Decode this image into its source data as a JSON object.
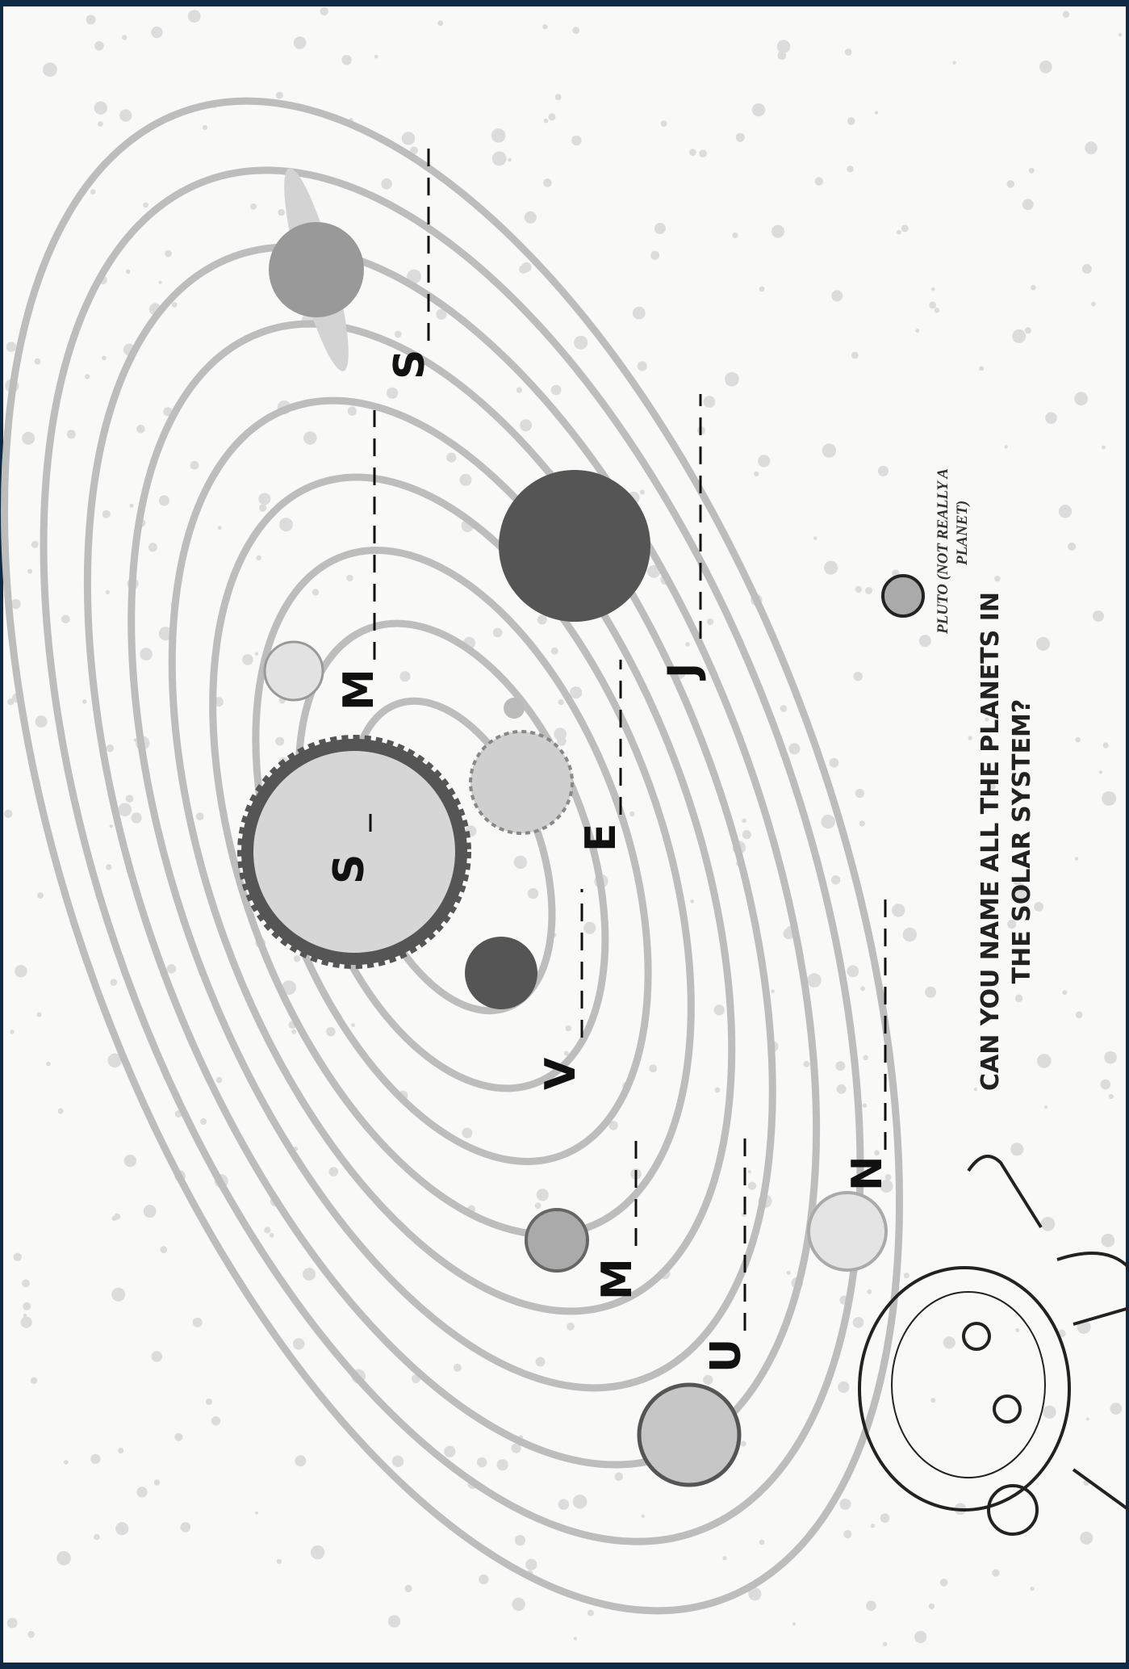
{
  "title": [
    "CAN YOU NAME ALL THE PLANETS IN",
    "THE SOLAR SYSTEM?"
  ],
  "planets": [
    {
      "label": "S"
    },
    {
      "label": "M"
    },
    {
      "label": "V"
    },
    {
      "label": "E"
    },
    {
      "label": "M"
    },
    {
      "label": "J"
    },
    {
      "label": "S"
    },
    {
      "label": "U"
    },
    {
      "label": "N"
    }
  ],
  "pluto": [
    "PLUTO (NOT REALLY A",
    "PLANET)"
  ]
}
